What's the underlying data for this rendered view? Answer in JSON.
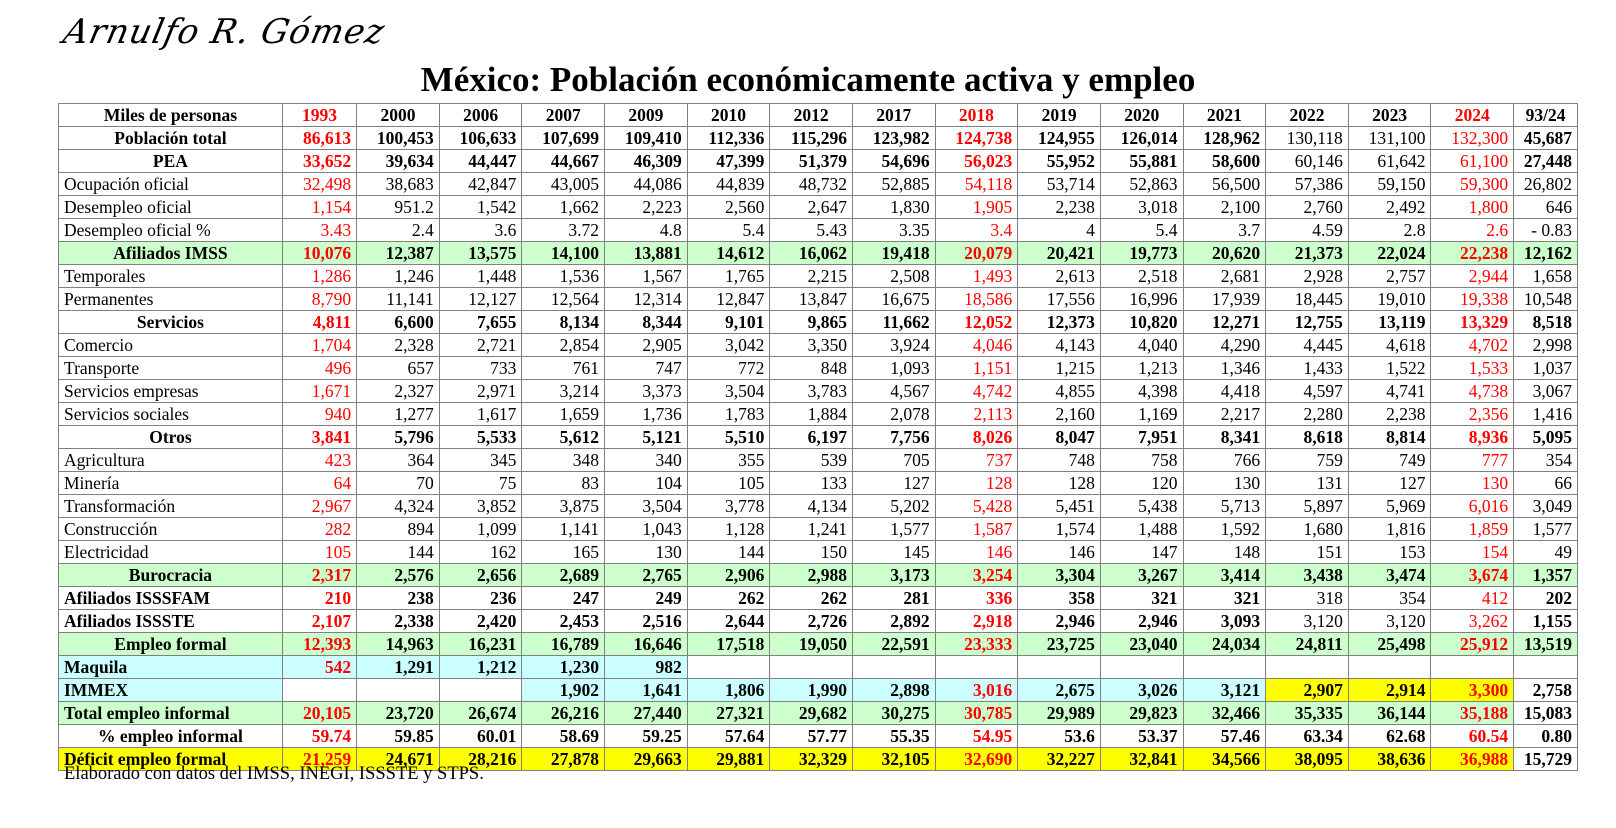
{
  "signature": "Arnulfo R. Gómez",
  "title": "México: Población económicamente activa y empleo",
  "footer": "Elaborado con datos del IMSS, INEGI, ISSSTE y STPS.",
  "colors": {
    "red_text": "#ff0000",
    "green_fill": "#ccffcc",
    "cyan_fill": "#ccffff",
    "yellow_fill": "#ffff00"
  },
  "table": {
    "corner": "Miles de personas",
    "years": [
      "1993",
      "2000",
      "2006",
      "2007",
      "2009",
      "2010",
      "2012",
      "2017",
      "2018",
      "2019",
      "2020",
      "2021",
      "2022",
      "2023",
      "2024",
      "93/24"
    ],
    "red_columns": [
      0,
      8,
      14
    ],
    "rows": [
      {
        "label": "Población total",
        "bold": true,
        "center": true,
        "values": [
          "86,613",
          "100,453",
          "106,633",
          "107,699",
          "109,410",
          "112,336",
          "115,296",
          "123,982",
          "124,738",
          "124,955",
          "126,014",
          "128,962",
          "130,118",
          "131,100",
          "132,300",
          "45,687"
        ],
        "bold_upto": 12
      },
      {
        "label": "PEA",
        "bold": true,
        "center": true,
        "values": [
          "33,652",
          "39,634",
          "44,447",
          "44,667",
          "46,309",
          "47,399",
          "51,379",
          "54,696",
          "56,023",
          "55,952",
          "55,881",
          "58,600",
          "60,146",
          "61,642",
          "61,100",
          "27,448"
        ],
        "bold_upto": 12
      },
      {
        "label": "Ocupación oficial",
        "values": [
          "32,498",
          "38,683",
          "42,847",
          "43,005",
          "44,086",
          "44,839",
          "48,732",
          "52,885",
          "54,118",
          "53,714",
          "52,863",
          "56,500",
          "57,386",
          "59,150",
          "59,300",
          "26,802"
        ]
      },
      {
        "label": "Desempleo oficial",
        "values": [
          "1,154",
          "951.2",
          "1,542",
          "1,662",
          "2,223",
          "2,560",
          "2,647",
          "1,830",
          "1,905",
          "2,238",
          "3,018",
          "2,100",
          "2,760",
          "2,492",
          "1,800",
          "646"
        ]
      },
      {
        "label": "Desempleo oficial %",
        "values": [
          "3.43",
          "2.4",
          "3.6",
          "3.72",
          "4.8",
          "5.4",
          "5.43",
          "3.35",
          "3.4",
          "4",
          "5.4",
          "3.7",
          "4.59",
          "2.8",
          "2.6",
          "- 0.83"
        ]
      },
      {
        "label": "Afiliados IMSS",
        "bold": true,
        "center": true,
        "fill": "green",
        "values": [
          "10,076",
          "12,387",
          "13,575",
          "14,100",
          "13,881",
          "14,612",
          "16,062",
          "19,418",
          "20,079",
          "20,421",
          "19,773",
          "20,620",
          "21,373",
          "22,024",
          "22,238",
          "12,162"
        ]
      },
      {
        "label": "Temporales",
        "values": [
          "1,286",
          "1,246",
          "1,448",
          "1,536",
          "1,567",
          "1,765",
          "2,215",
          "2,508",
          "1,493",
          "2,613",
          "2,518",
          "2,681",
          "2,928",
          "2,757",
          "2,944",
          "1,658"
        ]
      },
      {
        "label": "Permanentes",
        "values": [
          "8,790",
          "11,141",
          "12,127",
          "12,564",
          "12,314",
          "12,847",
          "13,847",
          "16,675",
          "18,586",
          "17,556",
          "16,996",
          "17,939",
          "18,445",
          "19,010",
          "19,338",
          "10,548"
        ]
      },
      {
        "label": "Servicios",
        "bold": true,
        "center": true,
        "values": [
          "4,811",
          "6,600",
          "7,655",
          "8,134",
          "8,344",
          "9,101",
          "9,865",
          "11,662",
          "12,052",
          "12,373",
          "10,820",
          "12,271",
          "12,755",
          "13,119",
          "13,329",
          "8,518"
        ]
      },
      {
        "label": "Comercio",
        "values": [
          "1,704",
          "2,328",
          "2,721",
          "2,854",
          "2,905",
          "3,042",
          "3,350",
          "3,924",
          "4,046",
          "4,143",
          "4,040",
          "4,290",
          "4,445",
          "4,618",
          "4,702",
          "2,998"
        ]
      },
      {
        "label": "Transporte",
        "values": [
          "496",
          "657",
          "733",
          "761",
          "747",
          "772",
          "848",
          "1,093",
          "1,151",
          "1,215",
          "1,213",
          "1,346",
          "1,433",
          "1,522",
          "1,533",
          "1,037"
        ]
      },
      {
        "label": "Servicios empresas",
        "values": [
          "1,671",
          "2,327",
          "2,971",
          "3,214",
          "3,373",
          "3,504",
          "3,783",
          "4,567",
          "4,742",
          "4,855",
          "4,398",
          "4,418",
          "4,597",
          "4,741",
          "4,738",
          "3,067"
        ]
      },
      {
        "label": "Servicios sociales",
        "values": [
          "940",
          "1,277",
          "1,617",
          "1,659",
          "1,736",
          "1,783",
          "1,884",
          "2,078",
          "2,113",
          "2,160",
          "1,169",
          "2,217",
          "2,280",
          "2,238",
          "2,356",
          "1,416"
        ]
      },
      {
        "label": "Otros",
        "bold": true,
        "center": true,
        "values": [
          "3,841",
          "5,796",
          "5,533",
          "5,612",
          "5,121",
          "5,510",
          "6,197",
          "7,756",
          "8,026",
          "8,047",
          "7,951",
          "8,341",
          "8,618",
          "8,814",
          "8,936",
          "5,095"
        ]
      },
      {
        "label": "Agricultura",
        "values": [
          "423",
          "364",
          "345",
          "348",
          "340",
          "355",
          "539",
          "705",
          "737",
          "748",
          "758",
          "766",
          "759",
          "749",
          "777",
          "354"
        ]
      },
      {
        "label": "Minería",
        "values": [
          "64",
          "70",
          "75",
          "83",
          "104",
          "105",
          "133",
          "127",
          "128",
          "128",
          "120",
          "130",
          "131",
          "127",
          "130",
          "66"
        ]
      },
      {
        "label": "Transformación",
        "values": [
          "2,967",
          "4,324",
          "3,852",
          "3,875",
          "3,504",
          "3,778",
          "4,134",
          "5,202",
          "5,428",
          "5,451",
          "5,438",
          "5,713",
          "5,897",
          "5,969",
          "6,016",
          "3,049"
        ]
      },
      {
        "label": "Construcción",
        "values": [
          "282",
          "894",
          "1,099",
          "1,141",
          "1,043",
          "1,128",
          "1,241",
          "1,577",
          "1,587",
          "1,574",
          "1,488",
          "1,592",
          "1,680",
          "1,816",
          "1,859",
          "1,577"
        ]
      },
      {
        "label": "Electricidad",
        "values": [
          "105",
          "144",
          "162",
          "165",
          "130",
          "144",
          "150",
          "145",
          "146",
          "146",
          "147",
          "148",
          "151",
          "153",
          "154",
          "49"
        ]
      },
      {
        "label": "Burocracia",
        "bold": true,
        "center": true,
        "fill": "green",
        "values": [
          "2,317",
          "2,576",
          "2,656",
          "2,689",
          "2,765",
          "2,906",
          "2,988",
          "3,173",
          "3,254",
          "3,304",
          "3,267",
          "3,414",
          "3,438",
          "3,474",
          "3,674",
          "1,357"
        ]
      },
      {
        "label": "Afiliados ISSSFAM",
        "bold": true,
        "values": [
          "210",
          "238",
          "236",
          "247",
          "249",
          "262",
          "262",
          "281",
          "336",
          "358",
          "321",
          "321",
          "318",
          "354",
          "412",
          "202"
        ],
        "bold_upto": 12
      },
      {
        "label": "Afiliados ISSSTE",
        "bold": true,
        "values": [
          "2,107",
          "2,338",
          "2,420",
          "2,453",
          "2,516",
          "2,644",
          "2,726",
          "2,892",
          "2,918",
          "2,946",
          "2,946",
          "3,093",
          "3,120",
          "3,120",
          "3,262",
          "1,155"
        ],
        "bold_upto": 12
      },
      {
        "label": "Empleo formal",
        "bold": true,
        "center": true,
        "fill": "green",
        "values": [
          "12,393",
          "14,963",
          "16,231",
          "16,789",
          "16,646",
          "17,518",
          "19,050",
          "22,591",
          "23,333",
          "23,725",
          "23,040",
          "24,034",
          "24,811",
          "25,498",
          "25,912",
          "13,519"
        ]
      },
      {
        "label": "Maquila",
        "bold": true,
        "fill": "cyan",
        "values": [
          "542",
          "1,291",
          "1,212",
          "1,230",
          "982",
          "",
          "",
          "",
          "",
          "",
          "",
          "",
          "",
          "",
          "",
          ""
        ],
        "blank_white_from": 5
      },
      {
        "label": "IMMEX",
        "bold": true,
        "fill": "cyan",
        "values": [
          "",
          "",
          "",
          "1,902",
          "1,641",
          "1,806",
          "1,990",
          "2,898",
          "3,016",
          "2,675",
          "3,026",
          "3,121",
          "2,907",
          "2,914",
          "3,300",
          "2,758"
        ],
        "yellow_cols": [
          12,
          13,
          14
        ],
        "white_cols": [
          0,
          1,
          2,
          15
        ]
      },
      {
        "label": "Total empleo informal",
        "bold": true,
        "fill": "green",
        "values": [
          "20,105",
          "23,720",
          "26,674",
          "26,216",
          "27,440",
          "27,321",
          "29,682",
          "30,275",
          "30,785",
          "29,989",
          "29,823",
          "32,466",
          "35,335",
          "36,144",
          "35,188",
          "15,083"
        ],
        "white_cols": [
          15
        ]
      },
      {
        "label": "% empleo informal",
        "bold": true,
        "center": true,
        "values": [
          "59.74",
          "59.85",
          "60.01",
          "58.69",
          "59.25",
          "57.64",
          "57.77",
          "55.35",
          "54.95",
          "53.6",
          "53.37",
          "57.46",
          "63.34",
          "62.68",
          "60.54",
          "0.80"
        ]
      },
      {
        "label": "Déficit empleo formal",
        "bold": true,
        "fill": "yellow",
        "values": [
          "21,259",
          "24,671",
          "28,216",
          "27,878",
          "29,663",
          "29,881",
          "32,329",
          "32,105",
          "32,690",
          "32,227",
          "32,841",
          "34,566",
          "38,095",
          "38,636",
          "36,988",
          "15,729"
        ],
        "white_cols": [
          15
        ]
      }
    ]
  }
}
